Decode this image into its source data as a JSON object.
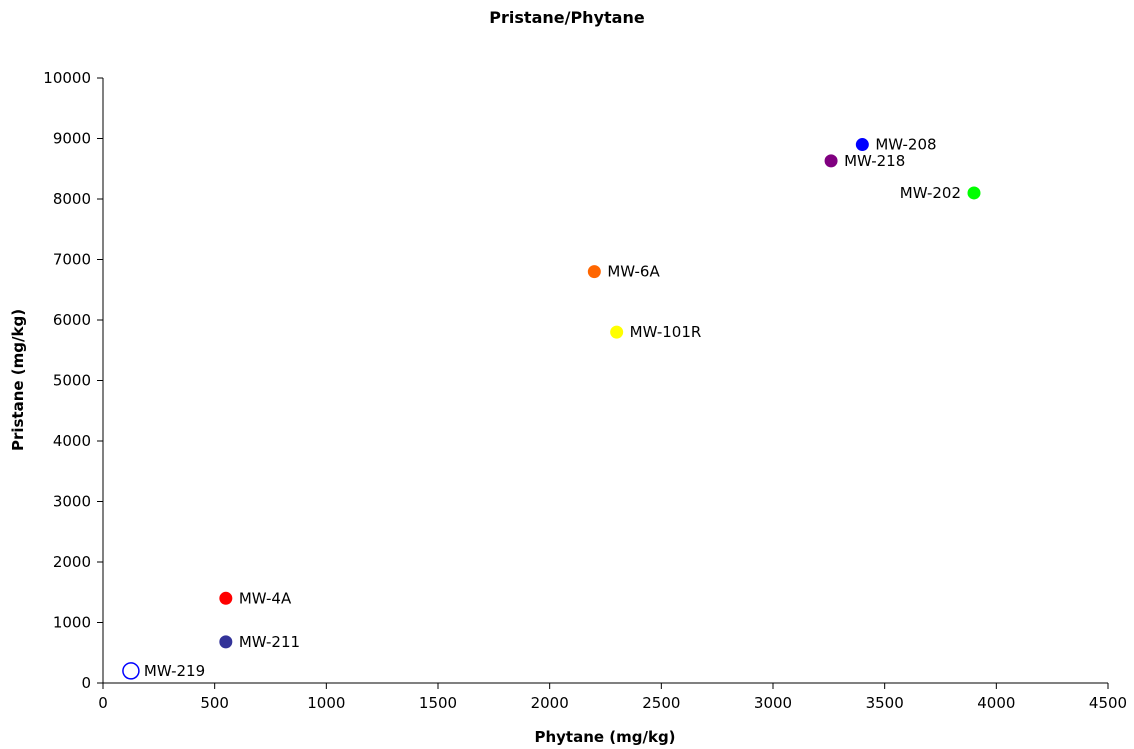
{
  "chart_data": {
    "type": "scatter",
    "title": "Pristane/Phytane",
    "xlabel": "Phytane (mg/kg)",
    "ylabel": "Pristane (mg/kg)",
    "xlim": [
      0,
      4500
    ],
    "ylim": [
      0,
      10000
    ],
    "xticks": [
      0,
      500,
      1000,
      1500,
      2000,
      2500,
      3000,
      3500,
      4000,
      4500
    ],
    "yticks": [
      0,
      1000,
      2000,
      3000,
      4000,
      5000,
      6000,
      7000,
      8000,
      9000,
      10000
    ],
    "grid": false,
    "points": [
      {
        "label": "MW-208",
        "x": 3400,
        "y": 8900,
        "color": "#0000ff",
        "filled": true,
        "label_side": "right"
      },
      {
        "label": "MW-218",
        "x": 3260,
        "y": 8630,
        "color": "#800080",
        "filled": true,
        "label_side": "right"
      },
      {
        "label": "MW-202",
        "x": 3900,
        "y": 8100,
        "color": "#00ff00",
        "filled": true,
        "label_side": "left"
      },
      {
        "label": "MW-6A",
        "x": 2200,
        "y": 6800,
        "color": "#ff6600",
        "filled": true,
        "label_side": "right"
      },
      {
        "label": "MW-101R",
        "x": 2300,
        "y": 5800,
        "color": "#ffff00",
        "filled": true,
        "label_side": "right"
      },
      {
        "label": "MW-4A",
        "x": 550,
        "y": 1400,
        "color": "#ff0000",
        "filled": true,
        "label_side": "right"
      },
      {
        "label": "MW-211",
        "x": 550,
        "y": 680,
        "color": "#333399",
        "filled": true,
        "label_side": "right"
      },
      {
        "label": "MW-219",
        "x": 125,
        "y": 200,
        "color": "#0000ff",
        "filled": false,
        "label_side": "right"
      }
    ]
  }
}
